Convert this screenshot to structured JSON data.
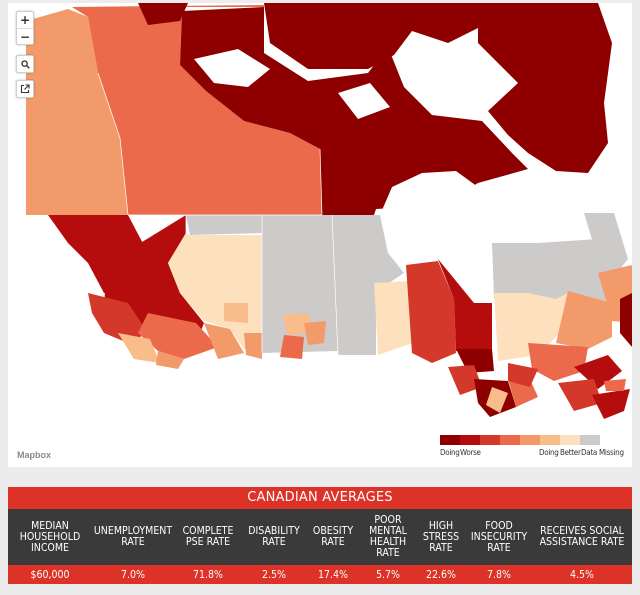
{
  "map": {
    "attribution": "Mapbox",
    "controls": {
      "zoom_in": "+",
      "zoom_out": "−",
      "search": "search",
      "share": "share"
    },
    "colors": {
      "doing_worse_1": "#8e0000",
      "doing_worse_2": "#b50d0d",
      "doing_worse_3": "#d4382a",
      "mid_1": "#ec6a4c",
      "mid_2": "#f39a6a",
      "doing_better_1": "#f8bd8b",
      "doing_better_2": "#fde0be",
      "missing": "#cdcaca",
      "water": "#ffffff"
    }
  },
  "legend": {
    "labels": [
      {
        "text": "Doing",
        "left": 0
      },
      {
        "text": "Worse",
        "left": 20
      },
      {
        "text": "Doing",
        "left": 99
      },
      {
        "text": "Better",
        "left": 120
      },
      {
        "text": "Data Missing",
        "left": 141
      }
    ]
  },
  "averages": {
    "title": "CANADIAN AVERAGES",
    "columns": [
      {
        "header": "MEDIAN HOUSEHOLD INCOME",
        "value": "$60,000"
      },
      {
        "header": "UNEMPLOYMENT RATE",
        "value": "7.0%"
      },
      {
        "header": "COMPLETE PSE RATE",
        "value": "71.8%"
      },
      {
        "header": "DISABILITY RATE",
        "value": "2.5%"
      },
      {
        "header": "OBESITY RATE",
        "value": "17.4%"
      },
      {
        "header": "POOR MENTAL HEALTH RATE",
        "value": "5.7%"
      },
      {
        "header": "HIGH STRESS RATE",
        "value": "22.6%"
      },
      {
        "header": "FOOD INSECURITY RATE",
        "value": "7.8%"
      },
      {
        "header": "RECEIVES SOCIAL ASSISTANCE RATE",
        "value": "4.5%"
      }
    ]
  }
}
